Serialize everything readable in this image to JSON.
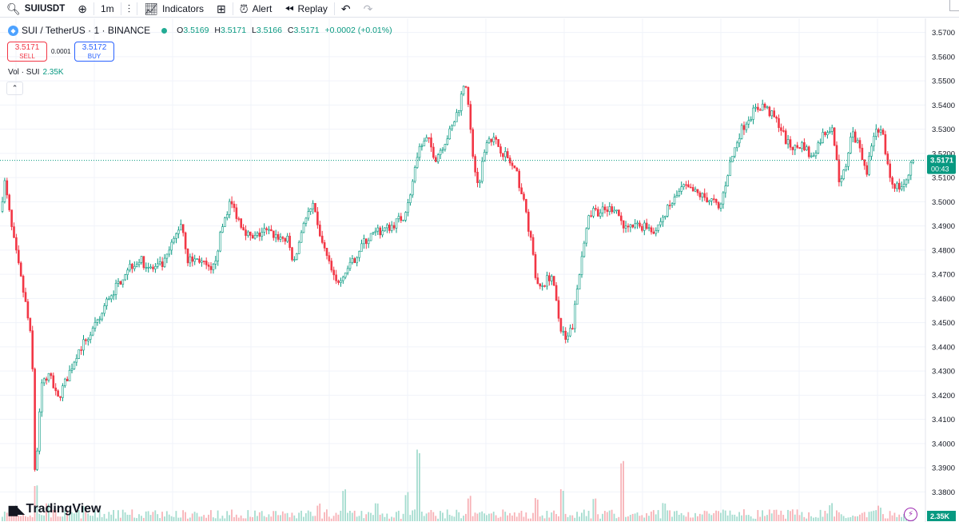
{
  "toolbar": {
    "symbol": "SUIUSDT",
    "interval": "1m",
    "indicators_label": "Indicators",
    "alert_label": "Alert",
    "replay_label": "Replay"
  },
  "legend": {
    "title": "SUI / TetherUS · 1 · BINANCE",
    "o_label": "O",
    "o": "3.5169",
    "h_label": "H",
    "h": "3.5171",
    "l_label": "L",
    "l": "3.5166",
    "c_label": "C",
    "c": "3.5171",
    "change": "+0.0002 (+0.01%)"
  },
  "trade": {
    "sell_price": "3.5171",
    "sell_label": "SELL",
    "spread": "0.0001",
    "buy_price": "3.5172",
    "buy_label": "BUY"
  },
  "volume_legend": {
    "label": "Vol · SUI",
    "value": "2.35K"
  },
  "watermark": "TradingView",
  "colors": {
    "up": "#089981",
    "down": "#f23645",
    "up_vol": "#a5dccf",
    "down_vol": "#f7b2b7",
    "grid": "#f0f3fa"
  },
  "chart_data": {
    "type": "candlestick",
    "symbol": "SUI / TetherUS",
    "exchange": "BINANCE",
    "interval": "1",
    "ylim": [
      3.3765,
      3.5725
    ],
    "y_ticks": [
      "3.5700",
      "3.5600",
      "3.5500",
      "3.5400",
      "3.5300",
      "3.5200",
      "3.5100",
      "3.5000",
      "3.4900",
      "3.4800",
      "3.4700",
      "3.4600",
      "3.4500",
      "3.4400",
      "3.4300",
      "3.4200",
      "3.4100",
      "3.4000",
      "3.3900",
      "3.3800"
    ],
    "last_price": "3.5171",
    "countdown": "00:43",
    "last_volume": "2.35K",
    "close_path": [
      [
        0,
        3.496
      ],
      [
        6,
        3.508
      ],
      [
        15,
        3.488
      ],
      [
        25,
        3.47
      ],
      [
        33,
        3.456
      ],
      [
        40,
        3.44
      ],
      [
        44,
        3.384
      ],
      [
        52,
        3.425
      ],
      [
        62,
        3.428
      ],
      [
        72,
        3.418
      ],
      [
        85,
        3.428
      ],
      [
        97,
        3.438
      ],
      [
        110,
        3.444
      ],
      [
        123,
        3.45
      ],
      [
        135,
        3.46
      ],
      [
        148,
        3.466
      ],
      [
        160,
        3.473
      ],
      [
        175,
        3.476
      ],
      [
        190,
        3.472
      ],
      [
        205,
        3.474
      ],
      [
        220,
        3.486
      ],
      [
        227,
        3.492
      ],
      [
        235,
        3.476
      ],
      [
        250,
        3.476
      ],
      [
        265,
        3.47
      ],
      [
        280,
        3.492
      ],
      [
        288,
        3.5
      ],
      [
        300,
        3.492
      ],
      [
        315,
        3.484
      ],
      [
        330,
        3.488
      ],
      [
        345,
        3.486
      ],
      [
        360,
        3.484
      ],
      [
        368,
        3.474
      ],
      [
        380,
        3.492
      ],
      [
        392,
        3.498
      ],
      [
        398,
        3.488
      ],
      [
        410,
        3.476
      ],
      [
        420,
        3.466
      ],
      [
        428,
        3.47
      ],
      [
        440,
        3.474
      ],
      [
        452,
        3.482
      ],
      [
        465,
        3.486
      ],
      [
        478,
        3.488
      ],
      [
        490,
        3.49
      ],
      [
        505,
        3.494
      ],
      [
        515,
        3.506
      ],
      [
        525,
        3.522
      ],
      [
        535,
        3.526
      ],
      [
        545,
        3.518
      ],
      [
        555,
        3.524
      ],
      [
        565,
        3.53
      ],
      [
        575,
        3.54
      ],
      [
        582,
        3.552
      ],
      [
        590,
        3.524
      ],
      [
        598,
        3.506
      ],
      [
        610,
        3.528
      ],
      [
        622,
        3.524
      ],
      [
        635,
        3.518
      ],
      [
        648,
        3.51
      ],
      [
        658,
        3.496
      ],
      [
        665,
        3.482
      ],
      [
        672,
        3.464
      ],
      [
        680,
        3.466
      ],
      [
        690,
        3.47
      ],
      [
        700,
        3.45
      ],
      [
        708,
        3.442
      ],
      [
        716,
        3.448
      ],
      [
        725,
        3.47
      ],
      [
        733,
        3.49
      ],
      [
        742,
        3.496
      ],
      [
        755,
        3.496
      ],
      [
        770,
        3.498
      ],
      [
        782,
        3.488
      ],
      [
        795,
        3.49
      ],
      [
        810,
        3.49
      ],
      [
        820,
        3.488
      ],
      [
        830,
        3.494
      ],
      [
        842,
        3.5
      ],
      [
        855,
        3.506
      ],
      [
        868,
        3.504
      ],
      [
        880,
        3.502
      ],
      [
        893,
        3.5
      ],
      [
        900,
        3.496
      ],
      [
        912,
        3.514
      ],
      [
        925,
        3.528
      ],
      [
        935,
        3.534
      ],
      [
        945,
        3.538
      ],
      [
        955,
        3.54
      ],
      [
        965,
        3.536
      ],
      [
        975,
        3.532
      ],
      [
        985,
        3.524
      ],
      [
        995,
        3.522
      ],
      [
        1005,
        3.524
      ],
      [
        1015,
        3.518
      ],
      [
        1030,
        3.528
      ],
      [
        1042,
        3.532
      ],
      [
        1050,
        3.506
      ],
      [
        1058,
        3.514
      ],
      [
        1065,
        3.528
      ],
      [
        1075,
        3.524
      ],
      [
        1085,
        3.512
      ],
      [
        1095,
        3.532
      ],
      [
        1105,
        3.526
      ],
      [
        1115,
        3.508
      ],
      [
        1125,
        3.506
      ],
      [
        1135,
        3.508
      ],
      [
        1140,
        3.5171
      ]
    ],
    "volume_spikes": [
      [
        44,
        3.5
      ],
      [
        60,
        1.8
      ],
      [
        106,
        1.2
      ],
      [
        400,
        1.5
      ],
      [
        430,
        3.0
      ],
      [
        470,
        1.4
      ],
      [
        510,
        2.6
      ],
      [
        523,
        7.0
      ],
      [
        586,
        2.3
      ],
      [
        672,
        2.0
      ],
      [
        704,
        3.0
      ],
      [
        745,
        2.0
      ],
      [
        780,
        6.0
      ],
      [
        830,
        1.7
      ],
      [
        1040,
        1.5
      ],
      [
        1100,
        1.3
      ]
    ]
  }
}
